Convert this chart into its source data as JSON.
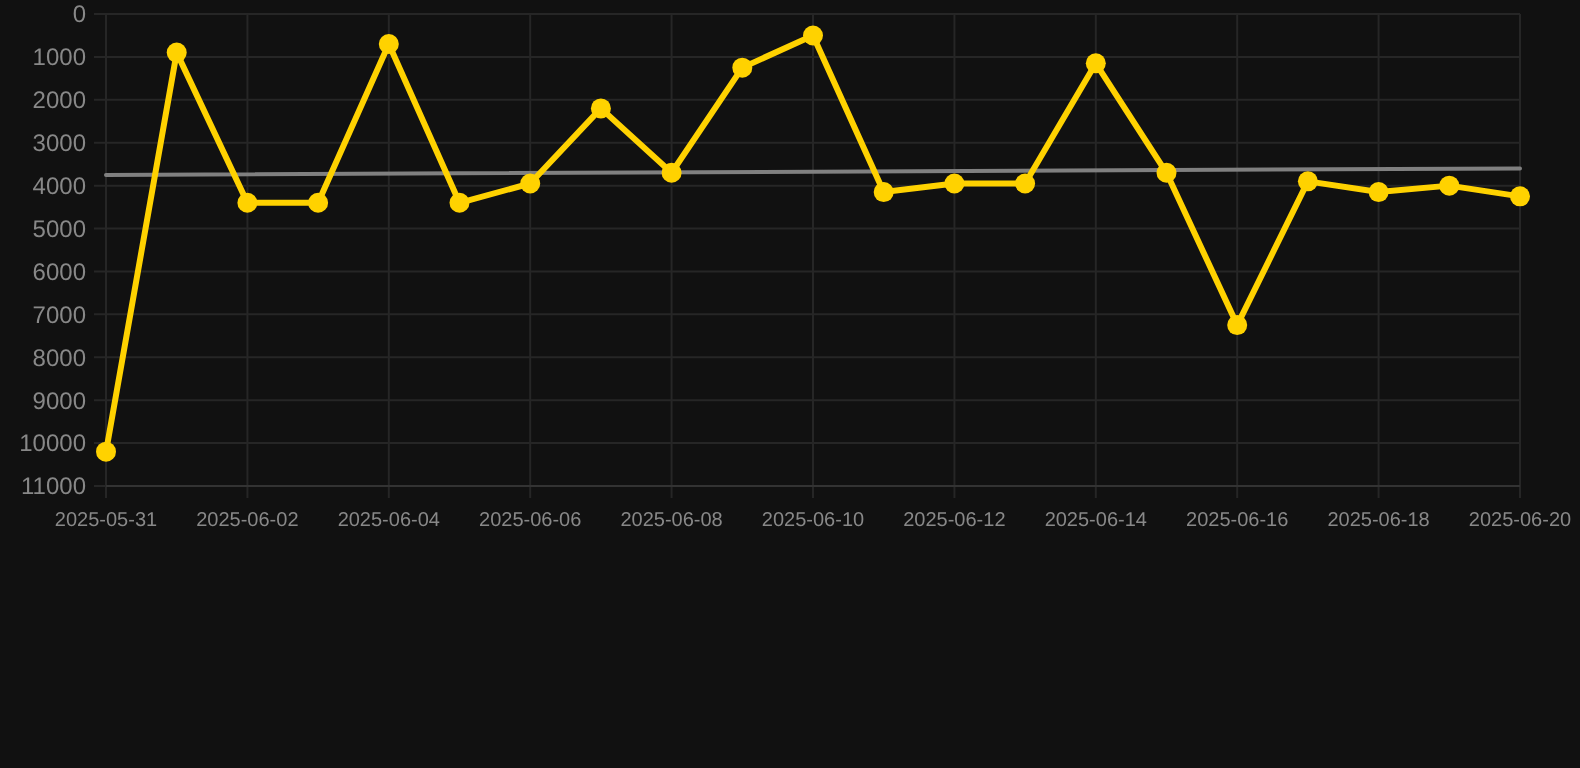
{
  "chart_data": {
    "type": "line",
    "x": [
      "2025-05-31",
      "2025-06-01",
      "2025-06-02",
      "2025-06-03",
      "2025-06-04",
      "2025-06-05",
      "2025-06-06",
      "2025-06-07",
      "2025-06-08",
      "2025-06-09",
      "2025-06-10",
      "2025-06-11",
      "2025-06-12",
      "2025-06-13",
      "2025-06-14",
      "2025-06-15",
      "2025-06-16",
      "2025-06-17",
      "2025-06-18",
      "2025-06-19",
      "2025-06-20"
    ],
    "series": [
      {
        "color": "#ffd200",
        "marker": "circle",
        "values": [
          10200,
          900,
          4400,
          4400,
          700,
          4400,
          3950,
          2200,
          3700,
          1250,
          500,
          4150,
          3950,
          3950,
          1150,
          3700,
          7250,
          3900,
          4150,
          4000,
          4250
        ]
      },
      {
        "type": "line",
        "color": "#808080",
        "marker": "none",
        "x": [
          "2025-05-31",
          "2025-06-20"
        ],
        "values": [
          3750,
          3600
        ]
      }
    ],
    "xlim": [
      "2025-05-31",
      "2025-06-20"
    ],
    "xticks": [
      "2025-05-31",
      "2025-06-02",
      "2025-06-04",
      "2025-06-06",
      "2025-06-08",
      "2025-06-10",
      "2025-06-12",
      "2025-06-14",
      "2025-06-16",
      "2025-06-18",
      "2025-06-20"
    ],
    "ylim": [
      11000,
      0
    ],
    "yticks": [
      0,
      1000,
      2000,
      3000,
      4000,
      5000,
      6000,
      7000,
      8000,
      9000,
      10000,
      11000
    ],
    "grid": true
  }
}
